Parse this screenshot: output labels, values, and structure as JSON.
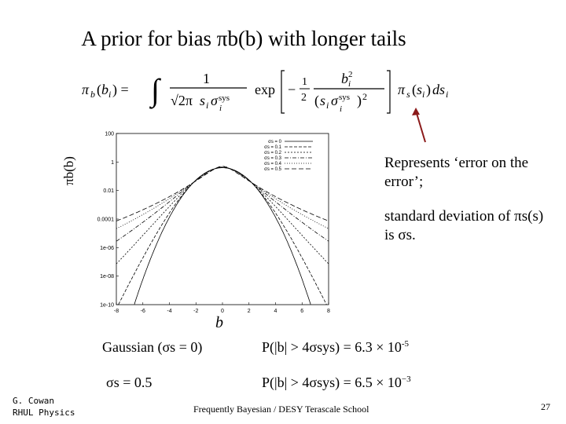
{
  "title": "A prior for bias πb(b) with longer tails",
  "y_axis_label": "πb(b)",
  "x_axis_label": "b",
  "plot": {
    "y_ticks": [
      "100",
      "1",
      "0.01",
      "0.0001",
      "1e-06",
      "1e-08",
      "1e-10"
    ],
    "x_ticks": [
      "-8",
      "-6",
      "-4",
      "-2",
      "0",
      "2",
      "4",
      "6",
      "8"
    ],
    "legend": [
      "σs = 0",
      "σs = 0.1",
      "σs = 0.2",
      "σs = 0.3",
      "σs = 0.4",
      "σs = 0.5"
    ]
  },
  "note_1": "Represents ‘error on the error’;",
  "note_2": "standard deviation of πs(s) is σs.",
  "gaussian_label": "Gaussian (σs = 0)",
  "gaussian_prob_text": "P(|b| > 4σsys) = 6.3 × 10",
  "gaussian_prob_exp": "-5",
  "sigma_label": "σs = 0.5",
  "sigma_prob_text": "P(|b| > 4σsys) = 6.5 × 10",
  "sigma_prob_exp": "−3",
  "author_line1": "G. Cowan",
  "author_line2": "RHUL Physics",
  "footer": "Frequently Bayesian / DESY Terascale School",
  "page_number": "27"
}
